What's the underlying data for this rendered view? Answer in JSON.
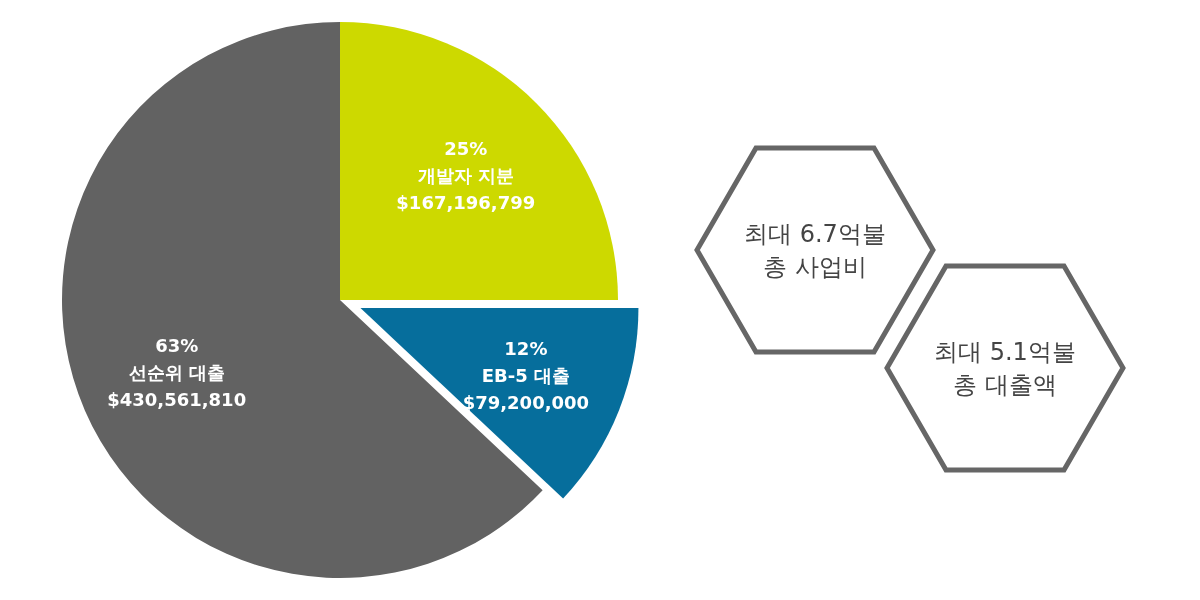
{
  "chart_data": {
    "type": "pie",
    "categories": [
      "개발자 지분",
      "EB-5 대출",
      "선순위 대출"
    ],
    "values": [
      25,
      12,
      63
    ],
    "value_labels": [
      "25%",
      "12%",
      "63%"
    ],
    "colors": [
      "#cdd900",
      "#066e9c",
      "#626262"
    ],
    "annotations": [
      {
        "text": "$167,196,799",
        "x": "개발자 지분"
      },
      {
        "text": "$79,200,000",
        "x": "EB-5 대출"
      },
      {
        "text": "$430,561,810",
        "x": "선순위 대출"
      },
      "최대 6.7억불\n총 사업비",
      "최대 5.1억불\n총 대출액"
    ]
  }
}
